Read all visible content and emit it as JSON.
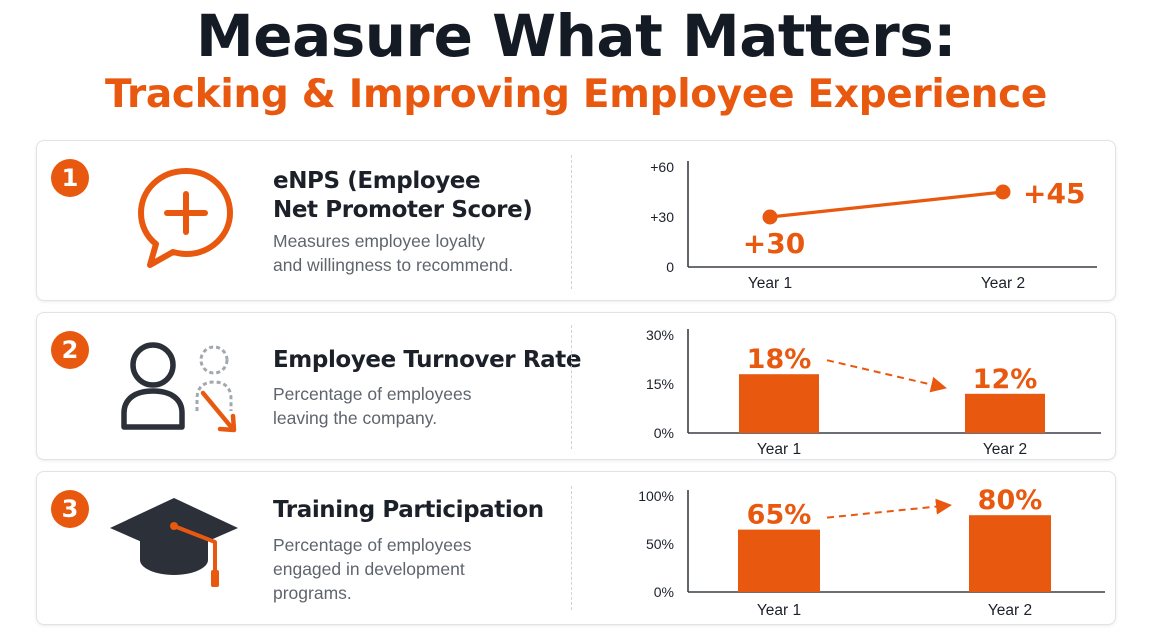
{
  "header": {
    "title": "Measure What Matters:",
    "subtitle": "Tracking & Improving Employee Experience"
  },
  "colors": {
    "accent": "#e8580f",
    "dark": "#1b2029",
    "muted": "#5f656d",
    "card_border": "#e1e3e6"
  },
  "metrics": [
    {
      "number": "1",
      "icon": "chat-plus-icon",
      "title_lines": [
        "eNPS (Employee",
        "Net Promoter Score)"
      ],
      "desc_lines": [
        "Measures employee loyalty",
        "and willingness to recommend."
      ]
    },
    {
      "number": "2",
      "icon": "person-leaving-icon",
      "title_lines": [
        "Employee Turnover Rate"
      ],
      "desc_lines": [
        "Percentage of employees",
        "leaving the company."
      ]
    },
    {
      "number": "3",
      "icon": "graduation-cap-icon",
      "title_lines": [
        "Training Participation"
      ],
      "desc_lines": [
        "Percentage of employees",
        "engaged in development",
        "programs."
      ]
    }
  ],
  "chart_data": [
    {
      "type": "line",
      "categories": [
        "Year 1",
        "Year 2"
      ],
      "values": [
        30,
        45
      ],
      "data_labels": [
        "+30",
        "+45"
      ],
      "yticks": [
        "0",
        "+30",
        "+60"
      ],
      "ylim": [
        0,
        60
      ],
      "grid": false,
      "trend": "increase"
    },
    {
      "type": "bar",
      "categories": [
        "Year 1",
        "Year 2"
      ],
      "values": [
        18,
        12
      ],
      "data_labels": [
        "18%",
        "12%"
      ],
      "yticks": [
        "0%",
        "15%",
        "30%"
      ],
      "ylim": [
        0,
        30
      ],
      "grid": false,
      "trend": "decrease"
    },
    {
      "type": "bar",
      "categories": [
        "Year 1",
        "Year 2"
      ],
      "values": [
        65,
        80
      ],
      "data_labels": [
        "65%",
        "80%"
      ],
      "yticks": [
        "0%",
        "50%",
        "100%"
      ],
      "ylim": [
        0,
        100
      ],
      "grid": false,
      "trend": "increase"
    }
  ]
}
